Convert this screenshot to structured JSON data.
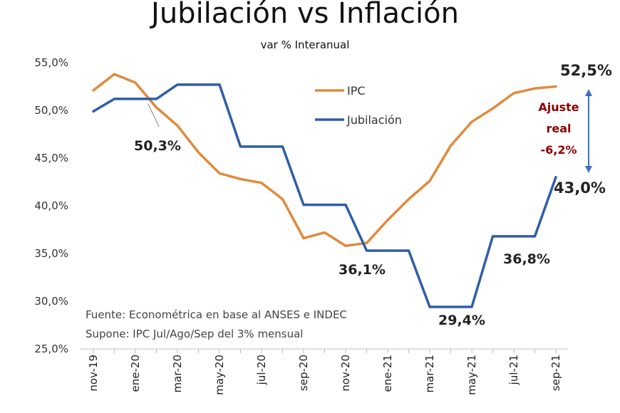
{
  "chart_data": {
    "type": "line",
    "title": "Jubilación vs Inflación",
    "subtitle": "var % Interanual",
    "xlabel": "",
    "ylabel": "",
    "ylim": [
      25,
      55
    ],
    "y_ticks": [
      "55,0%",
      "50,0%",
      "45,0%",
      "40,0%",
      "35,0%",
      "30,0%",
      "25,0%"
    ],
    "x_tick_labels": [
      "nov-19",
      "ene-20",
      "mar-20",
      "may-20",
      "jul-20",
      "sep-20",
      "nov-20",
      "ene-21",
      "mar-21",
      "may-21",
      "jul-21",
      "sep-21"
    ],
    "x": [
      "nov-19",
      "dic-19",
      "ene-20",
      "feb-20",
      "mar-20",
      "abr-20",
      "may-20",
      "jun-20",
      "jul-20",
      "ago-20",
      "sep-20",
      "oct-20",
      "nov-20",
      "dic-20",
      "ene-21",
      "feb-21",
      "mar-21",
      "abr-21",
      "may-21",
      "jun-21",
      "jul-21",
      "ago-21",
      "sep-21"
    ],
    "series": [
      {
        "name": "IPC",
        "color": "#e08a3c",
        "values": [
          52.1,
          53.8,
          52.9,
          50.3,
          48.4,
          45.6,
          43.4,
          42.8,
          42.4,
          40.7,
          36.6,
          37.2,
          35.8,
          36.1,
          38.5,
          40.7,
          42.6,
          46.3,
          48.8,
          50.2,
          51.8,
          52.3,
          52.5
        ]
      },
      {
        "name": "Jubilación",
        "color": "#2f5ea8",
        "values": [
          49.9,
          51.2,
          51.2,
          51.2,
          52.7,
          52.7,
          52.7,
          46.2,
          46.2,
          46.2,
          40.1,
          40.1,
          40.1,
          35.3,
          35.3,
          35.3,
          29.4,
          29.4,
          29.4,
          36.8,
          36.8,
          36.8,
          43.0
        ]
      }
    ],
    "data_labels": [
      "50,3%",
      "36,1%",
      "29,4%",
      "36,8%",
      "52,5%",
      "43,0%"
    ],
    "legend": [
      "IPC",
      "Jubilación"
    ],
    "annotation": {
      "line1": "Ajuste",
      "line2": "real",
      "line3": "-6,2%"
    },
    "notes": [
      "Fuente: Econométrica en base al ANSES e INDEC",
      "Supone:  IPC Jul/Ago/Sep  del 3% mensual"
    ]
  }
}
